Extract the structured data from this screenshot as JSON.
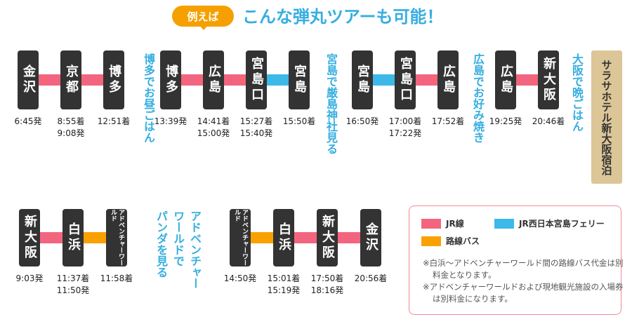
{
  "header": {
    "badge": "例えば",
    "title": "こんな弾丸ツアーも可能！"
  },
  "rows": [
    {
      "groups": [
        {
          "stations": [
            {
              "name": "金沢",
              "times": [
                "6:45発"
              ]
            },
            {
              "name": "京都",
              "times": [
                "8:55着",
                "9:08発"
              ]
            },
            {
              "name": "博多",
              "times": [
                "12:51着"
              ]
            }
          ],
          "lines": [
            "#f3657f",
            "#f3657f"
          ],
          "note": [
            "博多でお昼ごはん"
          ]
        },
        {
          "stations": [
            {
              "name": "博多",
              "times": [
                "13:39発"
              ]
            },
            {
              "name": "広島",
              "times": [
                "14:41着",
                "15:00発"
              ]
            },
            {
              "name": "宮島口",
              "times": [
                "15:27着",
                "15:40発"
              ]
            },
            {
              "name": "宮島",
              "times": [
                "15:50着"
              ]
            }
          ],
          "lines": [
            "#f3657f",
            "#f3657f",
            "#3cb9e8"
          ],
          "note": [
            "宮島で厳島神社見る"
          ]
        },
        {
          "stations": [
            {
              "name": "宮島",
              "times": [
                "16:50発"
              ]
            },
            {
              "name": "宮島口",
              "times": [
                "17:00着",
                "17:22発"
              ]
            },
            {
              "name": "広島",
              "times": [
                "17:52着"
              ]
            }
          ],
          "lines": [
            "#3cb9e8",
            "#f3657f"
          ],
          "note": [
            "広島でお好み焼き"
          ]
        },
        {
          "stations": [
            {
              "name": "広島",
              "times": [
                "19:25発"
              ]
            },
            {
              "name": "新大阪",
              "times": [
                "20:46着"
              ]
            }
          ],
          "lines": [
            "#f3657f"
          ],
          "note": [
            "大阪で晩ごはん"
          ]
        }
      ]
    },
    {
      "groups": [
        {
          "stations": [
            {
              "name": "新大阪",
              "times": [
                "9:03発"
              ]
            },
            {
              "name": "白浜",
              "times": [
                "11:37着",
                "11:50発"
              ]
            },
            {
              "name": "アドベンチャーワールド",
              "times": [
                "11:58着"
              ]
            }
          ],
          "lines": [
            "#f3657f",
            "#f9a100"
          ],
          "note": [
            "アドベンチャー",
            "ワールドで",
            "パンダを見る"
          ]
        },
        {
          "stations": [
            {
              "name": "アドベンチャーワールド",
              "times": [
                "14:50発"
              ]
            },
            {
              "name": "白浜",
              "times": [
                "15:01着",
                "15:19発"
              ]
            },
            {
              "name": "新大阪",
              "times": [
                "17:50着",
                "18:16発"
              ]
            },
            {
              "name": "金沢",
              "times": [
                "20:56着"
              ]
            }
          ],
          "lines": [
            "#f9a100",
            "#f3657f",
            "#f3657f"
          ]
        }
      ]
    }
  ],
  "hotel": "サラサホテル新大阪宿泊",
  "legend": {
    "items": [
      {
        "name": "JR線",
        "color": "#f3657f"
      },
      {
        "name": "JR西日本宮島フェリー",
        "color": "#3cb9e8"
      },
      {
        "name": "路線バス",
        "color": "#f9a100"
      }
    ],
    "notes": [
      "※白浜～アドベンチャーワールド間の路線バス代金は別料金となります。",
      "※アドベンチャーワールドおよび現地観光施設の入場券は別料金になります。"
    ]
  }
}
